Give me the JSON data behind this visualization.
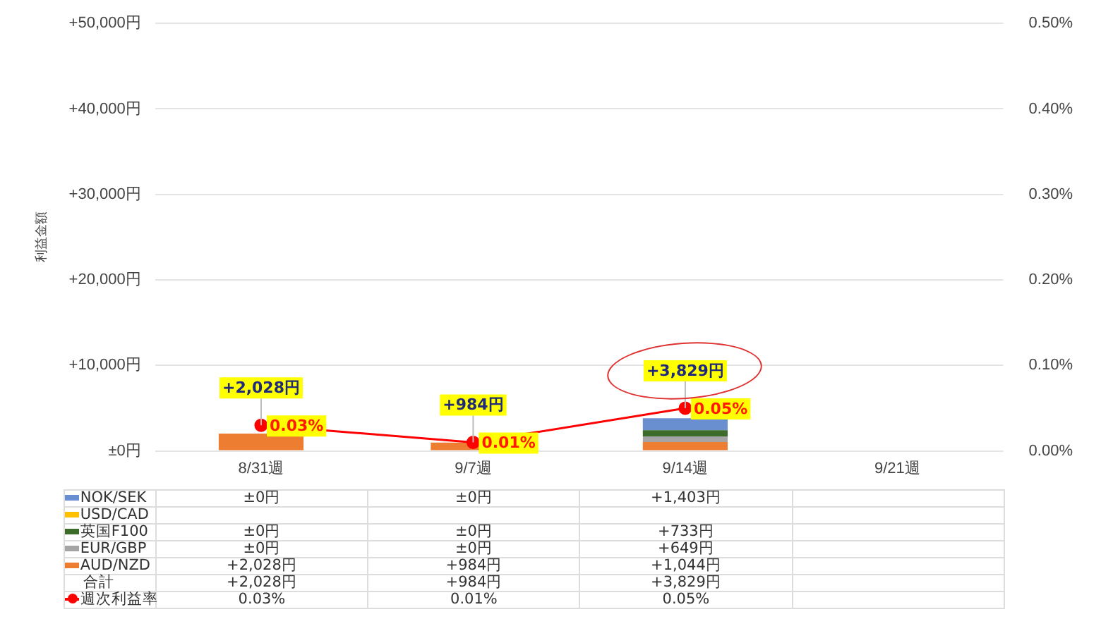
{
  "chart_data": {
    "type": "bar",
    "stacked": true,
    "ylabel": "利益金額",
    "categories": [
      "8/31週",
      "9/7週",
      "9/14週",
      "9/21週"
    ],
    "series": [
      {
        "name": "AUD/NZD",
        "color": "#ed7d31",
        "values": [
          2028,
          984,
          1044,
          null
        ],
        "value_labels": [
          "+2,028円",
          "+984円",
          "+1,044円",
          null
        ]
      },
      {
        "name": "EUR/GBP",
        "color": "#a5a5a5",
        "values": [
          0,
          0,
          649,
          null
        ],
        "value_labels": [
          "±0円",
          "±0円",
          "+649円",
          null
        ]
      },
      {
        "name": "英国F100",
        "color": "#3d6b2a",
        "values": [
          0,
          0,
          733,
          null
        ],
        "value_labels": [
          "±0円",
          "±0円",
          "+733円",
          null
        ]
      },
      {
        "name": "USD/CAD",
        "color": "#ffc000",
        "values": [
          null,
          null,
          null,
          null
        ],
        "value_labels": [
          null,
          null,
          null,
          null
        ]
      },
      {
        "name": "NOK/SEK",
        "color": "#6a8fd0",
        "values": [
          0,
          0,
          1403,
          null
        ],
        "value_labels": [
          "±0円",
          "±0円",
          "+1,403円",
          null
        ]
      },
      {
        "name": "週次利益率",
        "type": "line",
        "axis": "y2",
        "color": "#ff0000",
        "marker": "circle",
        "line_style": "solid",
        "values": [
          0.03,
          0.01,
          0.05,
          null
        ],
        "value_labels": [
          "0.03%",
          "0.01%",
          "0.05%",
          null
        ]
      }
    ],
    "totals": [
      "+2,028円",
      "+984円",
      "+3,829円",
      null
    ],
    "annotations": [
      "合計"
    ],
    "ylim": [
      0,
      50000
    ],
    "yticks": [
      {
        "value": 0,
        "label": "±0円"
      },
      {
        "value": 10000,
        "label": "+10,000円"
      },
      {
        "value": 20000,
        "label": "+20,000円"
      },
      {
        "value": 30000,
        "label": "+30,000円"
      },
      {
        "value": 40000,
        "label": "+40,000円"
      },
      {
        "value": 50000,
        "label": "+50,000円"
      }
    ],
    "y2lim": [
      0,
      0.5
    ],
    "y2ticks": [
      {
        "value": 0,
        "label": "0.00%"
      },
      {
        "value": 0.1,
        "label": "0.10%"
      },
      {
        "value": 0.2,
        "label": "0.20%"
      },
      {
        "value": 0.3,
        "label": "0.30%"
      },
      {
        "value": 0.4,
        "label": "0.40%"
      },
      {
        "value": 0.5,
        "label": "0.50%"
      }
    ],
    "grid": "y",
    "legend": "bottom",
    "data_labels": true
  }
}
